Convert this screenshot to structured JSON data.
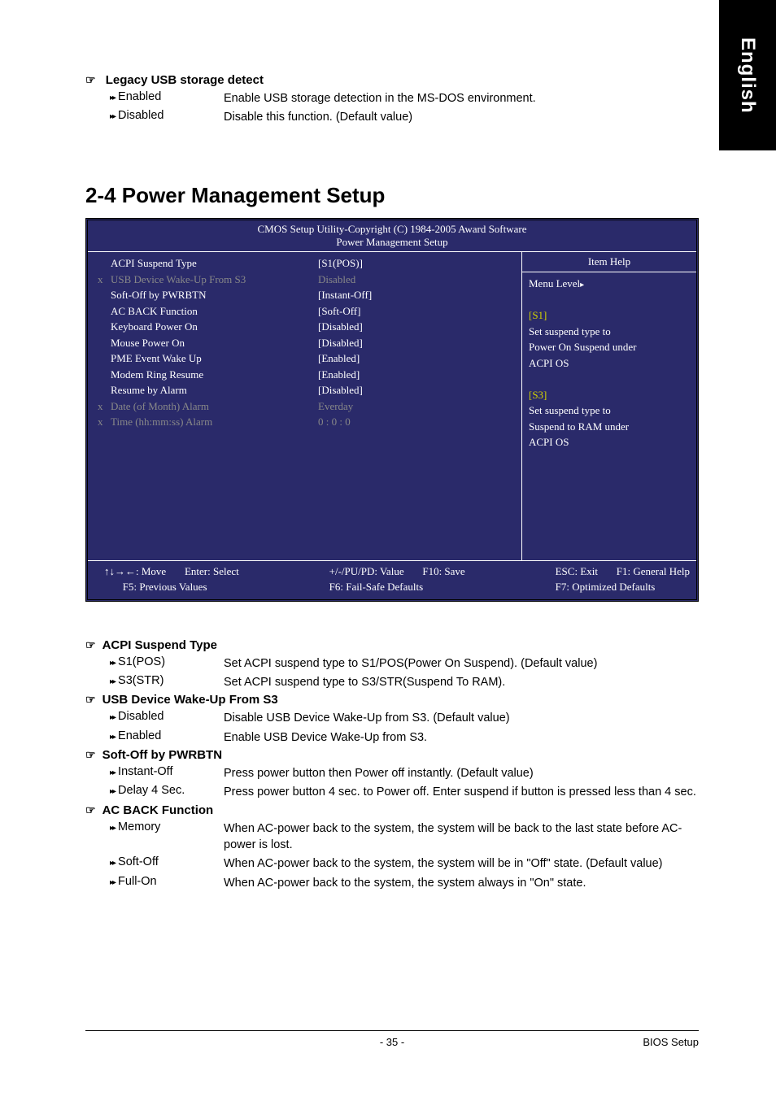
{
  "side_tab": "English",
  "legacy_usb": {
    "heading": "Legacy USB storage detect",
    "options": [
      {
        "label": "Enabled",
        "desc": "Enable USB storage detection in the MS-DOS environment."
      },
      {
        "label": "Disabled",
        "desc": "Disable this function. (Default value)"
      }
    ]
  },
  "main_heading": "2-4    Power Management Setup",
  "bios": {
    "title_line1": "CMOS Setup Utility-Copyright (C) 1984-2005 Award Software",
    "title_line2": "Power Management Setup",
    "colors": {
      "background": "#2a2a6a",
      "text": "#ffffff",
      "dimmed": "#888888",
      "highlight": "#d4d400"
    },
    "rows": [
      {
        "marker": "",
        "label": "ACPI Suspend Type",
        "value": "[S1(POS)]",
        "dimmed": false
      },
      {
        "marker": "x",
        "label": "USB Device Wake-Up From S3",
        "value": "Disabled",
        "dimmed": true
      },
      {
        "marker": "",
        "label": "Soft-Off by PWRBTN",
        "value": "[Instant-Off]",
        "dimmed": false
      },
      {
        "marker": "",
        "label": "AC BACK Function",
        "value": "[Soft-Off]",
        "dimmed": false
      },
      {
        "marker": "",
        "label": "Keyboard Power On",
        "value": "[Disabled]",
        "dimmed": false
      },
      {
        "marker": "",
        "label": "Mouse Power On",
        "value": "[Disabled]",
        "dimmed": false
      },
      {
        "marker": "",
        "label": "PME Event Wake Up",
        "value": "[Enabled]",
        "dimmed": false
      },
      {
        "marker": "",
        "label": "Modem Ring Resume",
        "value": "[Enabled]",
        "dimmed": false
      },
      {
        "marker": "",
        "label": "Resume by Alarm",
        "value": "[Disabled]",
        "dimmed": false
      },
      {
        "marker": "x",
        "label": "Date (of Month) Alarm",
        "value": "Everday",
        "dimmed": true
      },
      {
        "marker": "x",
        "label": "Time (hh:mm:ss) Alarm",
        "value": "0 : 0 : 0",
        "dimmed": true
      }
    ],
    "help": {
      "header": "Item Help",
      "menu_level": "Menu Level",
      "lines": [
        "",
        "[S1]",
        "Set suspend type to",
        "Power On Suspend under",
        "ACPI OS",
        "",
        "[S3]",
        "Set suspend type to",
        "Suspend to RAM under",
        "ACPI OS"
      ]
    },
    "footer": {
      "c1a": "↑↓→←: Move",
      "c1b": "Enter: Select",
      "c1c": "F5: Previous Values",
      "c2a": "+/-/PU/PD: Value",
      "c2b": "F6: Fail-Safe Defaults",
      "c3a": "F10: Save",
      "c4a": "ESC: Exit",
      "c4b": "F1: General Help",
      "c4c": "F7: Optimized Defaults"
    }
  },
  "sections": [
    {
      "heading": "ACPI Suspend Type",
      "options": [
        {
          "label": "S1(POS)",
          "desc": "Set ACPI suspend type to S1/POS(Power On Suspend). (Default value)"
        },
        {
          "label": "S3(STR)",
          "desc": "Set ACPI suspend type to S3/STR(Suspend To RAM)."
        }
      ]
    },
    {
      "heading": "USB Device Wake-Up From S3",
      "options": [
        {
          "label": "Disabled",
          "desc": "Disable USB Device Wake-Up from S3. (Default value)"
        },
        {
          "label": "Enabled",
          "desc": "Enable USB Device Wake-Up from S3."
        }
      ]
    },
    {
      "heading": "Soft-Off by PWRBTN",
      "options": [
        {
          "label": "Instant-Off",
          "desc": "Press power button then Power off instantly. (Default value)"
        },
        {
          "label": "Delay 4 Sec.",
          "desc": "Press power button 4 sec. to Power off. Enter suspend if button is pressed less than 4 sec."
        }
      ]
    },
    {
      "heading": "AC BACK Function",
      "options": [
        {
          "label": "Memory",
          "desc": "When AC-power back to the system, the system will be back to the last state before AC-power is lost."
        },
        {
          "label": "Soft-Off",
          "desc": "When AC-power back to the system, the system will be in \"Off\" state. (Default value)"
        },
        {
          "label": "Full-On",
          "desc": "When AC-power back to the system, the system always in \"On\" state."
        }
      ]
    }
  ],
  "page_footer": {
    "page_number": "- 35 -",
    "label": "BIOS Setup"
  }
}
